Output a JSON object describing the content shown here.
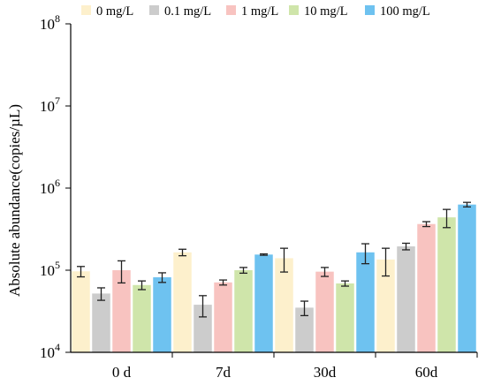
{
  "chart_data": {
    "type": "bar",
    "ylabel": "Absolute abundance(copies/µL)",
    "yscale": "log",
    "ylim": [
      10000,
      100000000
    ],
    "y_ticks": [
      {
        "value": 10000,
        "base": "10",
        "exp": "4"
      },
      {
        "value": 100000,
        "base": "10",
        "exp": "5"
      },
      {
        "value": 1000000,
        "base": "10",
        "exp": "6"
      },
      {
        "value": 10000000,
        "base": "10",
        "exp": "7"
      },
      {
        "value": 100000000,
        "base": "10",
        "exp": "8"
      }
    ],
    "grid": false,
    "legend_position": "top",
    "categories": [
      "0 d",
      "7d",
      "30d",
      "60d"
    ],
    "series": [
      {
        "name": "0 mg/L",
        "color": "#fdf0cc",
        "values": [
          97000,
          165000,
          140000,
          135000
        ],
        "errors": [
          14000,
          15000,
          45000,
          50000
        ]
      },
      {
        "name": "0.1 mg/L",
        "color": "#cccccc",
        "values": [
          52000,
          38000,
          35000,
          195000
        ],
        "errors": [
          9000,
          11000,
          7000,
          18000
        ]
      },
      {
        "name": "1 mg/L",
        "color": "#f8c3c0",
        "values": [
          100000,
          71000,
          96000,
          365000
        ],
        "errors": [
          30000,
          5000,
          12000,
          25000
        ]
      },
      {
        "name": "10 mg/L",
        "color": "#cfe5aa",
        "values": [
          66000,
          100000,
          69000,
          440000
        ],
        "errors": [
          8000,
          8000,
          5000,
          110000
        ]
      },
      {
        "name": "100 mg/L",
        "color": "#6ec2f0",
        "values": [
          82000,
          155000,
          165000,
          630000
        ],
        "errors": [
          11000,
          3000,
          45000,
          40000
        ]
      }
    ]
  }
}
